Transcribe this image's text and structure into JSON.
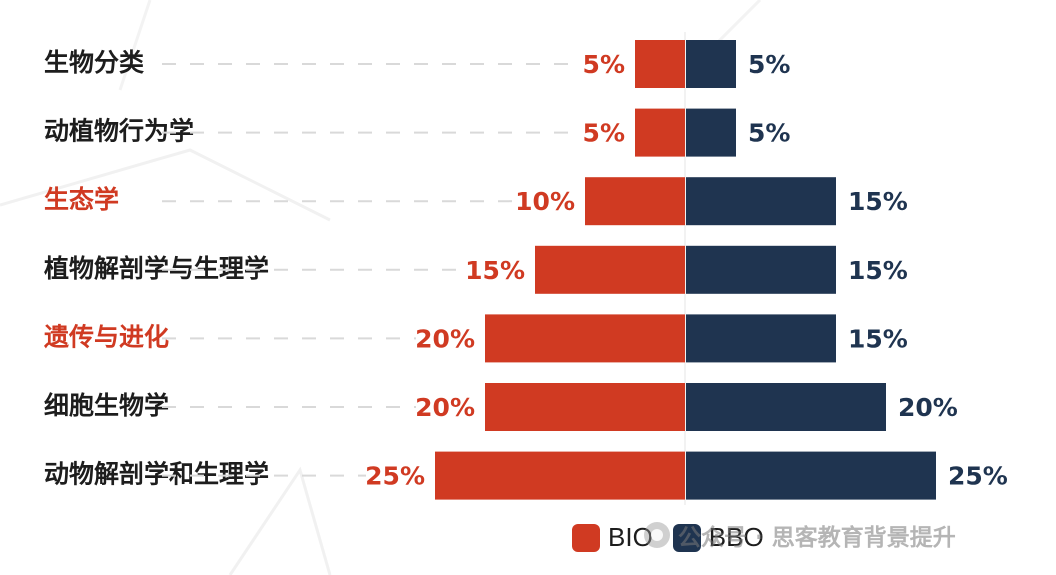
{
  "chart_data": {
    "type": "bar",
    "orientation": "horizontal-diverging",
    "categories": [
      "生物分类",
      "动植物行为学",
      "生态学",
      "植物解剖学与生理学",
      "遗传与进化",
      "细胞生物学",
      "动物解剖学和生理学"
    ],
    "highlighted_categories": [
      "生态学",
      "遗传与进化"
    ],
    "series": [
      {
        "name": "BIO",
        "values": [
          5,
          5,
          10,
          15,
          20,
          20,
          25
        ],
        "labels": [
          "5%",
          "5%",
          "10%",
          "15%",
          "20%",
          "20%",
          "25%"
        ],
        "color": "#d03a22"
      },
      {
        "name": "BBO",
        "values": [
          5,
          5,
          15,
          15,
          15,
          20,
          25
        ],
        "labels": [
          "5%",
          "5%",
          "15%",
          "15%",
          "15%",
          "20%",
          "25%"
        ],
        "color": "#1f3450"
      }
    ],
    "unit": "%",
    "legend_position": "bottom-right",
    "grid": false
  },
  "colors": {
    "highlight_text": "#d03a22",
    "text": "#1d1d1d",
    "bio": "#d03a22",
    "bbo": "#1f3450"
  },
  "legend": {
    "bio_label": "BIO",
    "bbo_label": "BBO"
  },
  "watermark": {
    "text": "公众号 · 思客教育背景提升",
    "icon": "wechat-icon"
  }
}
